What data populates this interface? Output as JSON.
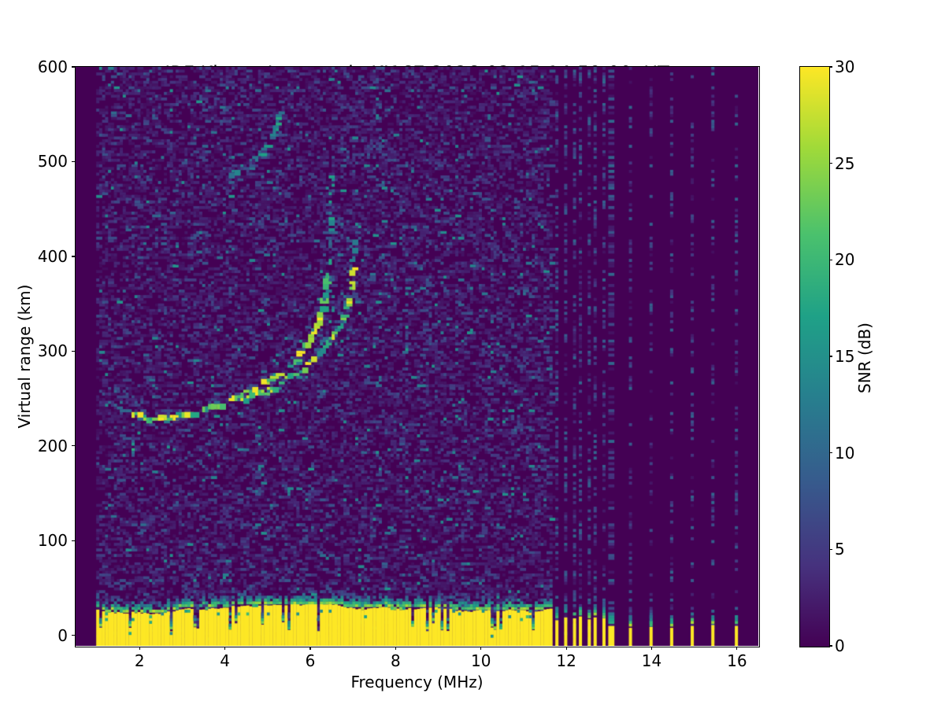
{
  "chart_data": {
    "type": "heatmap",
    "title": "IRF Kiruna Ionosonde KI167 2026-02-15 14:59:00  UT",
    "subtitle": "noise_floor=-118.76 (dB) peak SNR=100.35",
    "xlabel": "Frequency (MHz)",
    "ylabel": "Virtual range (km)",
    "colorbar_label": "SNR (dB)",
    "x_range": [
      0.5,
      16.5
    ],
    "y_range": [
      -11,
      600
    ],
    "x_ticks": [
      2,
      4,
      6,
      8,
      10,
      12,
      14,
      16
    ],
    "y_ticks": [
      0,
      100,
      200,
      300,
      400,
      500,
      600
    ],
    "colorbar_ticks": [
      0,
      5,
      10,
      15,
      20,
      25,
      30
    ],
    "colorbar_range": [
      0,
      30
    ],
    "colormap": {
      "name": "viridis",
      "anchors": [
        [
          0.0,
          "#440154"
        ],
        [
          0.14,
          "#46327e"
        ],
        [
          0.29,
          "#365c8d"
        ],
        [
          0.43,
          "#277f8e"
        ],
        [
          0.57,
          "#1fa187"
        ],
        [
          0.71,
          "#4ac16d"
        ],
        [
          0.86,
          "#a0da39"
        ],
        [
          1.0,
          "#fde725"
        ]
      ]
    },
    "background_snr_db": 0,
    "noise": {
      "f0": 1.0,
      "f1": 11.62,
      "layers": [
        [
          0.3,
          0.03,
          0.09
        ],
        [
          0.1,
          0.12,
          0.15
        ],
        [
          0.018,
          0.3,
          0.22
        ]
      ]
    },
    "noise_columns": [
      {
        "f": 1.78,
        "km0": 175,
        "km1": 245,
        "d": 0.5,
        "t": 0.4
      },
      {
        "f": 8.2,
        "km0": 120,
        "km1": 420,
        "d": 0.2,
        "t": 0.32
      },
      {
        "f": 8.68,
        "km0": 220,
        "km1": 520,
        "d": 0.24,
        "t": 0.38
      },
      {
        "f": 9.4,
        "km0": 300,
        "km1": 560,
        "d": 0.12,
        "t": 0.3
      },
      {
        "f": 10.25,
        "km0": 80,
        "km1": 450,
        "d": 0.16,
        "t": 0.3
      }
    ],
    "ground_band": {
      "f0": 1.0,
      "f1": 11.57,
      "top_km": 26,
      "top_min_km": 20,
      "top_max_km": 33,
      "notch_p": 0.09
    },
    "rfi_stripes": [
      {
        "f": 11.76,
        "d": 0.5,
        "top_km": 16
      },
      {
        "f": 11.95,
        "d": 0.5,
        "top_km": 19
      },
      {
        "f": 12.13,
        "d": 0.48,
        "top_km": 18
      },
      {
        "f": 12.31,
        "d": 0.48,
        "top_km": 20
      },
      {
        "f": 12.49,
        "d": 0.46,
        "top_km": 17
      },
      {
        "f": 12.66,
        "d": 0.46,
        "top_km": 19
      },
      {
        "f": 12.83,
        "d": 0.44,
        "top_km": 18
      },
      {
        "f": 13.0,
        "d": 0.4,
        "top_km": 10,
        "w": 2
      },
      {
        "f": 13.44,
        "d": 0.32,
        "top_km": 8
      },
      {
        "f": 13.92,
        "d": 0.3,
        "top_km": 9
      },
      {
        "f": 14.42,
        "d": 0.3,
        "top_km": 8
      },
      {
        "f": 14.92,
        "d": 0.34,
        "top_km": 10
      },
      {
        "f": 15.43,
        "d": 0.32,
        "top_km": 11
      },
      {
        "f": 15.94,
        "d": 0.36,
        "top_km": 10
      }
    ],
    "traces": [
      {
        "name": "f-layer-o-mode-lead",
        "density": 0.4,
        "t": [
          0.3,
          0.55
        ],
        "bright_p": 0.02,
        "w": 1.6,
        "h": 1.2,
        "pts": [
          [
            1.45,
            243
          ],
          [
            1.62,
            239
          ],
          [
            1.85,
            235
          ]
        ]
      },
      {
        "name": "f-layer-o-mode",
        "density": 0.82,
        "t": [
          0.5,
          0.95
        ],
        "bright_p": 0.18,
        "w": 2.0,
        "h": 1.6,
        "pts": [
          [
            1.85,
            234
          ],
          [
            2.1,
            231
          ],
          [
            2.4,
            229
          ],
          [
            2.7,
            229
          ],
          [
            3.0,
            232
          ],
          [
            3.3,
            235
          ],
          [
            3.6,
            239
          ],
          [
            3.9,
            244
          ],
          [
            4.2,
            249
          ],
          [
            4.5,
            255
          ],
          [
            4.8,
            261
          ],
          [
            5.1,
            269
          ],
          [
            5.4,
            279
          ],
          [
            5.65,
            290
          ],
          [
            5.85,
            302
          ],
          [
            6.05,
            316
          ],
          [
            6.2,
            331
          ],
          [
            6.3,
            347
          ],
          [
            6.38,
            365
          ],
          [
            6.43,
            383
          ]
        ]
      },
      {
        "name": "f-layer-o-mode-asymptote",
        "density": 0.55,
        "t": [
          0.3,
          0.6
        ],
        "bright_p": 0.04,
        "w": 1.2,
        "h": 1.4,
        "pts": [
          [
            6.45,
            395
          ],
          [
            6.47,
            415
          ],
          [
            6.48,
            435
          ],
          [
            6.49,
            455
          ],
          [
            6.5,
            472
          ],
          [
            6.505,
            492
          ]
        ]
      },
      {
        "name": "f-layer-x-mode",
        "density": 0.78,
        "t": [
          0.45,
          0.95
        ],
        "bright_p": 0.15,
        "w": 1.8,
        "h": 1.5,
        "pts": [
          [
            4.35,
            247
          ],
          [
            4.7,
            252
          ],
          [
            5.05,
            259
          ],
          [
            5.4,
            268
          ],
          [
            5.7,
            277
          ],
          [
            6.0,
            288
          ],
          [
            6.25,
            299
          ],
          [
            6.5,
            312
          ],
          [
            6.7,
            326
          ],
          [
            6.85,
            341
          ],
          [
            6.95,
            357
          ],
          [
            7.0,
            372
          ],
          [
            7.03,
            390
          ]
        ]
      },
      {
        "name": "f-layer-x-mode-asymptote",
        "density": 0.5,
        "t": [
          0.35,
          0.6
        ],
        "bright_p": 0.03,
        "w": 1.2,
        "h": 1.3,
        "pts": [
          [
            7.04,
            398
          ],
          [
            7.06,
            412
          ],
          [
            7.08,
            424
          ]
        ]
      },
      {
        "name": "second-hop-echo",
        "density": 0.55,
        "t": [
          0.28,
          0.6
        ],
        "bright_p": 0.03,
        "w": 1.8,
        "h": 1.5,
        "pts": [
          [
            4.15,
            487
          ],
          [
            4.5,
            493
          ],
          [
            4.72,
            500
          ],
          [
            4.95,
            512
          ],
          [
            5.12,
            526
          ],
          [
            5.25,
            541
          ],
          [
            5.33,
            556
          ]
        ]
      }
    ]
  }
}
